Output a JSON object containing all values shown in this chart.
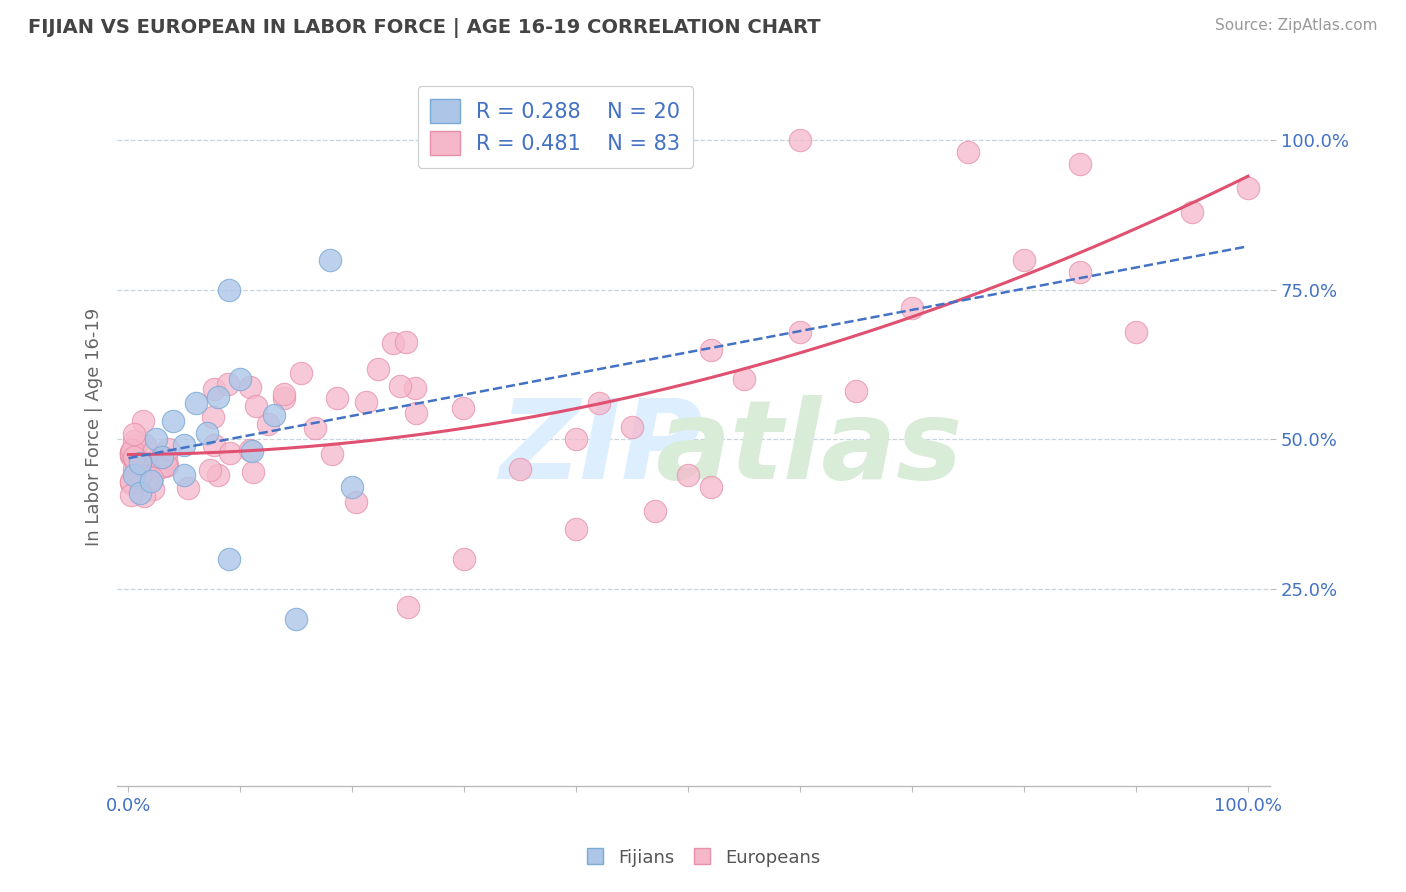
{
  "title": "FIJIAN VS EUROPEAN IN LABOR FORCE | AGE 16-19 CORRELATION CHART",
  "source_text": "Source: ZipAtlas.com",
  "ylabel": "In Labor Force | Age 16-19",
  "xticklabels_ends": [
    "0.0%",
    "100.0%"
  ],
  "ytick_values": [
    0.25,
    0.5,
    0.75,
    1.0
  ],
  "yticklabels": [
    "25.0%",
    "50.0%",
    "75.0%",
    "100.0%"
  ],
  "fijian_color": "#adc6e8",
  "european_color": "#f5b8cb",
  "fijian_edge": "#7aaad6",
  "european_edge": "#e88faa",
  "fijian_line_color": "#4472c4",
  "european_line_color": "#e05070",
  "R_fijian": 0.288,
  "N_fijian": 20,
  "R_european": 0.481,
  "N_european": 83,
  "background_color": "#ffffff",
  "grid_color": "#c8d4de",
  "watermark_zip_color": "#dce8f0",
  "watermark_atlas_color": "#d0e4d0",
  "title_color": "#444444",
  "source_color": "#999999",
  "ytick_color": "#4472c4",
  "xtick_color": "#4472c4"
}
